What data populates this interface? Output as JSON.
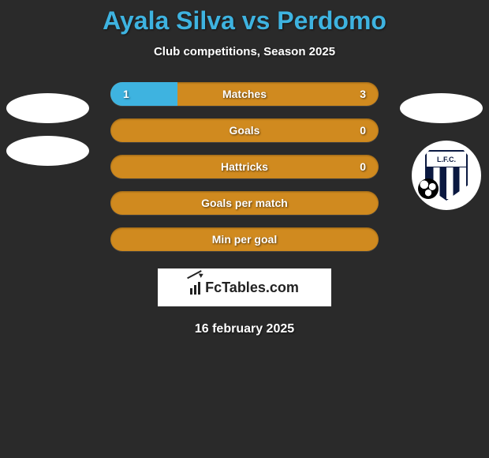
{
  "title": "Ayala Silva vs Perdomo",
  "subtitle": "Club competitions, Season 2025",
  "colors": {
    "title": "#3eb3e0",
    "background": "#2a2a2a",
    "bar_orange": "#d08a1f",
    "bar_blue": "#3eb3e0",
    "white": "#ffffff",
    "text": "#ffffff"
  },
  "bars": [
    {
      "label": "Matches",
      "left": "1",
      "right": "3",
      "bg": "#d08a1f",
      "left_fill_color": "#3eb3e0",
      "left_fill_pct": 25,
      "right_fill_color": "#d08a1f",
      "right_fill_pct": 75
    },
    {
      "label": "Goals",
      "left": "",
      "right": "0",
      "bg": "#d08a1f",
      "left_fill_color": "#d08a1f",
      "left_fill_pct": 0,
      "right_fill_color": "#d08a1f",
      "right_fill_pct": 0
    },
    {
      "label": "Hattricks",
      "left": "",
      "right": "0",
      "bg": "#d08a1f",
      "left_fill_color": "#d08a1f",
      "left_fill_pct": 0,
      "right_fill_color": "#d08a1f",
      "right_fill_pct": 0
    },
    {
      "label": "Goals per match",
      "left": "",
      "right": "",
      "bg": "#d08a1f",
      "left_fill_color": "#d08a1f",
      "left_fill_pct": 0,
      "right_fill_color": "#d08a1f",
      "right_fill_pct": 0
    },
    {
      "label": "Min per goal",
      "left": "",
      "right": "",
      "bg": "#d08a1f",
      "left_fill_color": "#d08a1f",
      "left_fill_pct": 0,
      "right_fill_color": "#d08a1f",
      "right_fill_pct": 0
    }
  ],
  "branding": "FcTables.com",
  "club_badge_text": "L.F.C.",
  "date": "16 february 2025"
}
